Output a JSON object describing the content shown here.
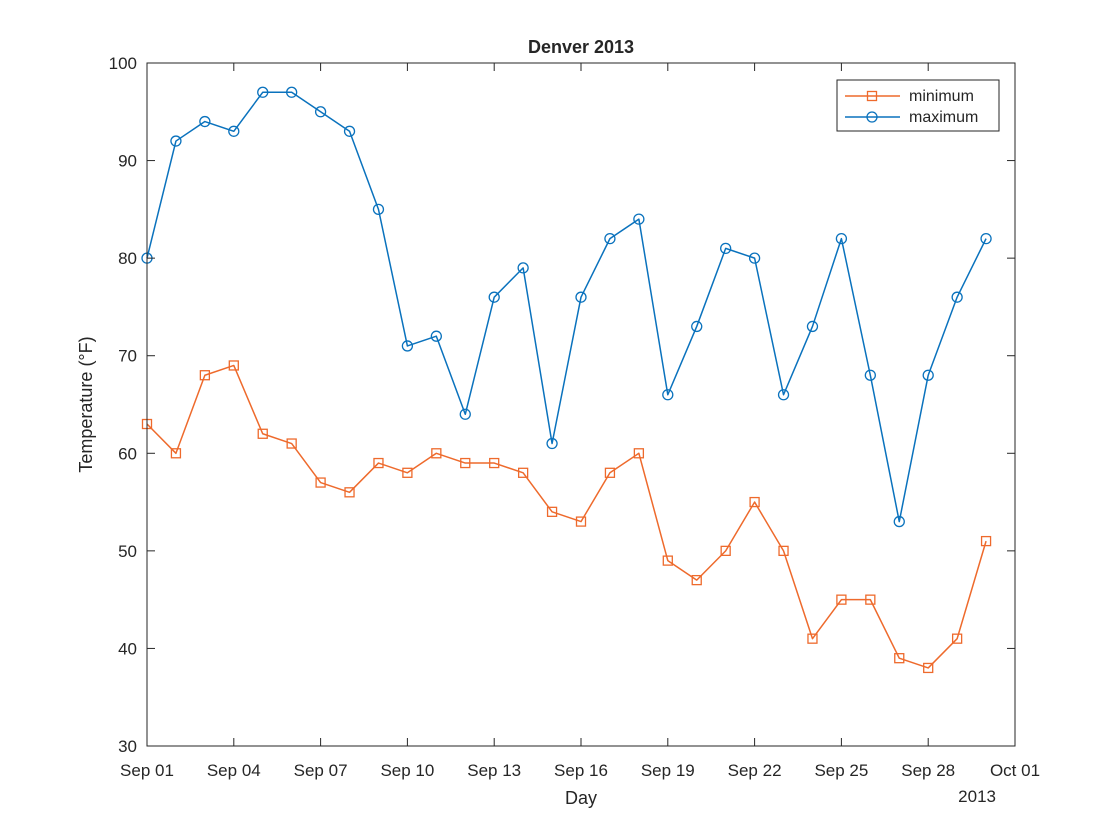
{
  "chart_data": {
    "type": "line",
    "title": "Denver 2013",
    "xlabel": "Day",
    "ylabel": "Temperature (°F)",
    "xlim": [
      "2013-09-01",
      "2013-10-01"
    ],
    "ylim": [
      30,
      100
    ],
    "x_tick_values": [
      "2013-09-01",
      "2013-09-04",
      "2013-09-07",
      "2013-09-10",
      "2013-09-13",
      "2013-09-16",
      "2013-09-19",
      "2013-09-22",
      "2013-09-25",
      "2013-09-28",
      "2013-10-01"
    ],
    "x_tick_labels": [
      "Sep 01",
      "Sep 04",
      "Sep 07",
      "Sep 10",
      "Sep 13",
      "Sep 16",
      "Sep 19",
      "Sep 22",
      "Sep 25",
      "Sep 28",
      "Oct 01"
    ],
    "x_secondary_label": "2013",
    "y_ticks": [
      30,
      40,
      50,
      60,
      70,
      80,
      90,
      100
    ],
    "grid": false,
    "legend_position": "top-right",
    "x": [
      "2013-09-01",
      "2013-09-02",
      "2013-09-03",
      "2013-09-04",
      "2013-09-05",
      "2013-09-06",
      "2013-09-07",
      "2013-09-08",
      "2013-09-09",
      "2013-09-10",
      "2013-09-11",
      "2013-09-12",
      "2013-09-13",
      "2013-09-14",
      "2013-09-15",
      "2013-09-16",
      "2013-09-17",
      "2013-09-18",
      "2013-09-19",
      "2013-09-20",
      "2013-09-21",
      "2013-09-22",
      "2013-09-23",
      "2013-09-24",
      "2013-09-25",
      "2013-09-26",
      "2013-09-27",
      "2013-09-28",
      "2013-09-29",
      "2013-09-30"
    ],
    "series": [
      {
        "name": "minimum",
        "color": "#EE6A2C",
        "marker": "square",
        "values": [
          63,
          60,
          68,
          69,
          62,
          61,
          57,
          56,
          59,
          58,
          60,
          59,
          59,
          58,
          54,
          53,
          58,
          60,
          49,
          47,
          50,
          55,
          50,
          41,
          45,
          45,
          39,
          38,
          41,
          51
        ]
      },
      {
        "name": "maximum",
        "color": "#0A72BD",
        "marker": "circle",
        "values": [
          80,
          92,
          94,
          93,
          97,
          97,
          95,
          93,
          85,
          71,
          72,
          64,
          76,
          79,
          61,
          76,
          82,
          84,
          66,
          73,
          81,
          80,
          66,
          73,
          82,
          68,
          53,
          68,
          76,
          82
        ]
      }
    ]
  }
}
